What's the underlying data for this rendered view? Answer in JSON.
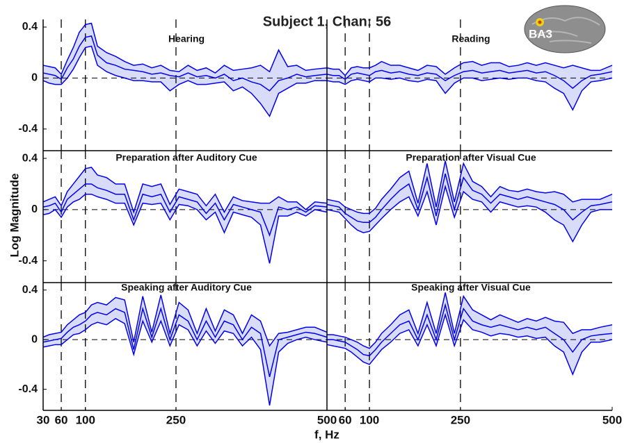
{
  "title": "Subject 1, Chan: 56",
  "x_label": "f, Hz",
  "y_label": "Log Magnitude",
  "brain_label": "BA3",
  "chart_data": [
    {
      "type": "band",
      "title": "Hearing",
      "color": "#0000ee",
      "band_color": "#d8dcf8",
      "x": [
        30,
        40,
        50,
        60,
        70,
        80,
        90,
        100,
        110,
        120,
        135,
        150,
        165,
        180,
        195,
        210,
        225,
        240,
        255,
        270,
        285,
        300,
        315,
        330,
        345,
        360,
        375,
        390,
        405,
        420,
        435,
        450,
        465,
        480,
        500
      ],
      "values": [
        0.04,
        0.03,
        0.02,
        -0.01,
        0.08,
        0.15,
        0.25,
        0.32,
        0.33,
        0.18,
        0.12,
        0.1,
        0.07,
        0.06,
        0.05,
        0.03,
        0.04,
        0.02,
        0.01,
        0.04,
        0.01,
        0.02,
        0.0,
        0.03,
        -0.02,
        0.0,
        -0.03,
        -0.05,
        -0.1,
        -0.02,
        0.0,
        0.03,
        0.01,
        0.02,
        0.03
      ],
      "upper": [
        0.1,
        0.09,
        0.08,
        0.03,
        0.14,
        0.24,
        0.36,
        0.42,
        0.43,
        0.25,
        0.2,
        0.17,
        0.13,
        0.1,
        0.11,
        0.08,
        0.1,
        0.06,
        0.05,
        0.1,
        0.06,
        0.08,
        0.04,
        0.1,
        0.06,
        0.07,
        0.08,
        0.1,
        0.05,
        0.22,
        0.09,
        0.1,
        0.06,
        0.07,
        0.08
      ],
      "lower": [
        -0.02,
        -0.04,
        -0.05,
        -0.05,
        0.0,
        0.07,
        0.16,
        0.24,
        0.25,
        0.1,
        0.05,
        0.02,
        0.0,
        -0.02,
        -0.02,
        -0.03,
        -0.03,
        -0.1,
        -0.05,
        -0.02,
        -0.05,
        -0.05,
        -0.04,
        -0.03,
        -0.1,
        -0.07,
        -0.12,
        -0.2,
        -0.3,
        -0.12,
        -0.08,
        -0.04,
        -0.04,
        -0.02,
        -0.02
      ],
      "xlim": [
        30,
        500
      ],
      "ylim": [
        -0.57,
        0.46
      ],
      "yticks": [
        -0.4,
        0,
        0.4
      ],
      "vlines": [
        60,
        100,
        250
      ],
      "hlines": [
        0
      ]
    },
    {
      "type": "band",
      "title": "Reading",
      "color": "#0000ee",
      "band_color": "#d8dcf8",
      "x": [
        30,
        40,
        50,
        60,
        70,
        80,
        90,
        100,
        110,
        120,
        135,
        150,
        165,
        180,
        195,
        210,
        225,
        240,
        255,
        270,
        285,
        300,
        315,
        330,
        345,
        360,
        375,
        390,
        405,
        420,
        435,
        450,
        465,
        480,
        500
      ],
      "values": [
        0.03,
        0.02,
        0.02,
        -0.01,
        0.03,
        0.04,
        0.03,
        0.02,
        0.05,
        0.06,
        0.04,
        0.05,
        0.03,
        0.02,
        0.04,
        0.03,
        -0.02,
        0.02,
        0.05,
        0.06,
        0.04,
        0.05,
        0.06,
        0.04,
        0.05,
        0.06,
        0.04,
        0.05,
        0.02,
        -0.02,
        -0.08,
        -0.02,
        0.02,
        0.03,
        0.05
      ],
      "upper": [
        0.08,
        0.07,
        0.07,
        0.02,
        0.08,
        0.09,
        0.08,
        0.08,
        0.1,
        0.13,
        0.1,
        0.1,
        0.08,
        0.06,
        0.1,
        0.09,
        0.03,
        0.08,
        0.12,
        0.13,
        0.1,
        0.12,
        0.12,
        0.09,
        0.1,
        0.12,
        0.1,
        0.12,
        0.1,
        0.08,
        0.1,
        0.08,
        0.06,
        0.06,
        0.1
      ],
      "lower": [
        -0.02,
        -0.03,
        -0.03,
        -0.05,
        -0.02,
        -0.01,
        -0.02,
        -0.03,
        0.0,
        0.0,
        -0.01,
        0.0,
        -0.02,
        -0.03,
        -0.01,
        -0.02,
        -0.12,
        -0.04,
        0.0,
        0.0,
        -0.02,
        -0.01,
        0.0,
        -0.01,
        0.0,
        0.0,
        -0.02,
        -0.03,
        -0.08,
        -0.12,
        -0.25,
        -0.1,
        -0.03,
        -0.02,
        0.0
      ],
      "xlim": [
        30,
        500
      ],
      "ylim": [
        -0.57,
        0.46
      ],
      "vlines": [
        60,
        100,
        250
      ],
      "hlines": [
        0
      ]
    },
    {
      "type": "band",
      "title": "Preparation after Auditory Cue",
      "color": "#0000ee",
      "band_color": "#d8dcf8",
      "x": [
        30,
        40,
        50,
        60,
        70,
        80,
        90,
        100,
        110,
        120,
        135,
        150,
        165,
        180,
        195,
        210,
        225,
        240,
        255,
        270,
        285,
        300,
        315,
        330,
        345,
        360,
        375,
        390,
        405,
        420,
        435,
        450,
        465,
        480,
        500
      ],
      "values": [
        0.02,
        0.03,
        0.05,
        -0.02,
        0.08,
        0.12,
        0.16,
        0.2,
        0.2,
        0.17,
        0.15,
        0.12,
        0.12,
        -0.08,
        0.12,
        0.1,
        0.12,
        -0.02,
        0.1,
        0.08,
        0.06,
        -0.03,
        0.05,
        -0.08,
        0.04,
        0.02,
        0.0,
        -0.02,
        -0.2,
        0.02,
        0.0,
        0.02,
        -0.02,
        0.03,
        0.02
      ],
      "upper": [
        0.06,
        0.08,
        0.1,
        0.03,
        0.14,
        0.2,
        0.26,
        0.32,
        0.33,
        0.27,
        0.25,
        0.2,
        0.2,
        -0.02,
        0.2,
        0.18,
        0.2,
        0.04,
        0.16,
        0.14,
        0.12,
        0.03,
        0.12,
        -0.02,
        0.1,
        0.07,
        0.06,
        0.05,
        0.05,
        0.1,
        0.06,
        0.06,
        0.0,
        0.06,
        0.05
      ],
      "lower": [
        -0.04,
        -0.03,
        0.0,
        -0.06,
        0.02,
        0.06,
        0.08,
        0.12,
        0.12,
        0.1,
        0.08,
        0.05,
        0.05,
        -0.12,
        0.05,
        0.04,
        0.05,
        -0.08,
        0.04,
        0.03,
        0.0,
        -0.08,
        -0.02,
        -0.18,
        -0.02,
        -0.04,
        -0.06,
        -0.12,
        -0.42,
        -0.05,
        -0.05,
        -0.02,
        -0.05,
        0.0,
        -0.02
      ],
      "xlim": [
        30,
        500
      ],
      "ylim": [
        -0.57,
        0.46
      ],
      "yticks": [
        -0.4,
        0,
        0.4
      ],
      "vlines": [
        60,
        100,
        250
      ],
      "hlines": [
        0
      ]
    },
    {
      "type": "band",
      "title": "Preparation after Visual Cue",
      "color": "#0000ee",
      "band_color": "#d8dcf8",
      "x": [
        30,
        40,
        50,
        60,
        70,
        80,
        90,
        100,
        110,
        120,
        135,
        150,
        165,
        180,
        195,
        210,
        225,
        240,
        255,
        270,
        285,
        300,
        315,
        330,
        345,
        360,
        375,
        390,
        405,
        420,
        435,
        450,
        465,
        480,
        500
      ],
      "values": [
        0.04,
        0.03,
        0.02,
        -0.03,
        -0.06,
        -0.09,
        -0.1,
        -0.1,
        -0.06,
        0.0,
        0.08,
        0.15,
        0.2,
        0.0,
        0.25,
        -0.05,
        0.28,
        0.0,
        0.25,
        0.15,
        0.12,
        0.05,
        0.12,
        0.1,
        0.08,
        0.1,
        0.08,
        0.06,
        0.04,
        0.0,
        -0.08,
        -0.02,
        0.03,
        0.04,
        0.06
      ],
      "upper": [
        0.08,
        0.07,
        0.06,
        0.02,
        0.0,
        -0.02,
        -0.03,
        -0.03,
        0.01,
        0.08,
        0.16,
        0.25,
        0.3,
        0.05,
        0.36,
        0.02,
        0.38,
        0.06,
        0.36,
        0.22,
        0.18,
        0.1,
        0.18,
        0.15,
        0.14,
        0.16,
        0.14,
        0.13,
        0.14,
        0.12,
        0.06,
        0.08,
        0.08,
        0.08,
        0.12
      ],
      "lower": [
        0.0,
        -0.01,
        -0.02,
        -0.07,
        -0.12,
        -0.16,
        -0.18,
        -0.17,
        -0.12,
        -0.07,
        0.0,
        0.06,
        0.1,
        -0.05,
        0.14,
        -0.12,
        0.18,
        -0.06,
        0.14,
        0.08,
        0.06,
        -0.02,
        0.06,
        0.04,
        0.02,
        0.03,
        0.02,
        -0.02,
        -0.08,
        -0.12,
        -0.25,
        -0.12,
        -0.02,
        0.0,
        0.0
      ],
      "xlim": [
        30,
        500
      ],
      "ylim": [
        -0.57,
        0.46
      ],
      "vlines": [
        60,
        100,
        250
      ],
      "hlines": [
        0
      ]
    },
    {
      "type": "band",
      "title": "Speaking after Auditory Cue",
      "color": "#0000ee",
      "band_color": "#d8dcf8",
      "x": [
        30,
        40,
        50,
        60,
        70,
        80,
        90,
        100,
        110,
        120,
        135,
        150,
        165,
        180,
        195,
        210,
        225,
        240,
        255,
        270,
        285,
        300,
        315,
        330,
        345,
        360,
        375,
        390,
        405,
        420,
        435,
        450,
        465,
        480,
        500
      ],
      "values": [
        -0.02,
        -0.01,
        0.0,
        0.01,
        0.06,
        0.1,
        0.12,
        0.15,
        0.2,
        0.22,
        0.2,
        0.25,
        0.22,
        -0.08,
        0.25,
        0.02,
        0.25,
        0.0,
        0.2,
        0.15,
        0.0,
        0.15,
        0.02,
        0.15,
        0.12,
        0.0,
        0.1,
        0.05,
        -0.3,
        0.0,
        0.02,
        0.04,
        0.06,
        0.05,
        0.02
      ],
      "upper": [
        0.02,
        0.04,
        0.05,
        0.06,
        0.12,
        0.16,
        0.2,
        0.22,
        0.28,
        0.3,
        0.28,
        0.34,
        0.32,
        -0.02,
        0.35,
        0.06,
        0.36,
        0.05,
        0.3,
        0.24,
        0.05,
        0.25,
        0.07,
        0.24,
        0.2,
        0.05,
        0.2,
        0.15,
        -0.05,
        0.05,
        0.06,
        0.08,
        0.1,
        0.1,
        0.06
      ],
      "lower": [
        -0.06,
        -0.05,
        -0.04,
        -0.04,
        0.0,
        0.04,
        0.05,
        0.08,
        0.12,
        0.14,
        0.12,
        0.17,
        0.13,
        -0.12,
        0.15,
        -0.02,
        0.15,
        -0.05,
        0.12,
        0.08,
        -0.05,
        0.07,
        -0.03,
        0.07,
        0.05,
        -0.05,
        0.02,
        -0.08,
        -0.53,
        -0.1,
        -0.03,
        0.0,
        0.02,
        0.0,
        -0.02
      ],
      "xlim": [
        30,
        500
      ],
      "ylim": [
        -0.57,
        0.46
      ],
      "yticks": [
        -0.4,
        0,
        0.4
      ],
      "xticks": [
        30,
        60,
        100,
        250,
        500
      ],
      "vlines": [
        60,
        100,
        250
      ],
      "hlines": [
        0
      ]
    },
    {
      "type": "band",
      "title": "Speaking after Visual Cue",
      "color": "#0000ee",
      "band_color": "#d8dcf8",
      "x": [
        30,
        40,
        50,
        60,
        70,
        80,
        90,
        100,
        110,
        120,
        135,
        150,
        165,
        180,
        195,
        210,
        225,
        240,
        255,
        270,
        285,
        300,
        315,
        330,
        345,
        360,
        375,
        390,
        405,
        420,
        435,
        450,
        465,
        480,
        500
      ],
      "values": [
        0.0,
        0.0,
        -0.01,
        -0.02,
        -0.05,
        -0.08,
        -0.12,
        -0.13,
        -0.08,
        -0.02,
        0.05,
        0.12,
        0.15,
        0.0,
        0.2,
        0.0,
        0.28,
        0.0,
        0.25,
        0.15,
        0.12,
        0.1,
        0.12,
        0.1,
        0.08,
        0.1,
        0.08,
        0.1,
        0.05,
        0.0,
        -0.1,
        0.0,
        0.03,
        0.04,
        0.05
      ],
      "upper": [
        0.04,
        0.04,
        0.03,
        0.02,
        0.0,
        -0.02,
        -0.05,
        -0.07,
        -0.02,
        0.05,
        0.12,
        0.2,
        0.24,
        0.05,
        0.3,
        0.05,
        0.38,
        0.05,
        0.35,
        0.24,
        0.2,
        0.16,
        0.2,
        0.17,
        0.14,
        0.17,
        0.15,
        0.18,
        0.15,
        0.14,
        0.05,
        0.08,
        0.08,
        0.1,
        0.12
      ],
      "lower": [
        -0.04,
        -0.05,
        -0.06,
        -0.07,
        -0.1,
        -0.14,
        -0.18,
        -0.2,
        -0.14,
        -0.08,
        -0.02,
        0.05,
        0.08,
        -0.05,
        0.12,
        -0.05,
        0.2,
        -0.05,
        0.16,
        0.08,
        0.06,
        0.03,
        0.05,
        0.04,
        0.02,
        0.03,
        0.01,
        0.02,
        -0.05,
        -0.1,
        -0.28,
        -0.1,
        -0.02,
        -0.02,
        0.0
      ],
      "xlim": [
        30,
        500
      ],
      "ylim": [
        -0.57,
        0.46
      ],
      "xticks": [
        60,
        100,
        250,
        500
      ],
      "vlines": [
        60,
        100,
        250
      ],
      "hlines": [
        0
      ]
    }
  ]
}
